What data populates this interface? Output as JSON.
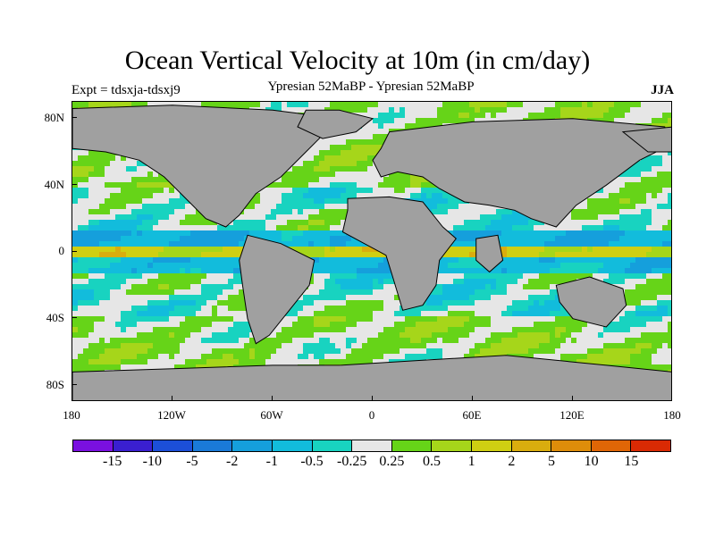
{
  "title": "Ocean Vertical Velocity at 10m (in cm/day)",
  "subtitle": "Ypresian  52MaBP - Ypresian  52MaBP",
  "expt": "Expt = tdsxja-tdsxj9",
  "season": "JJA",
  "lat_labels": [
    "80N",
    "40N",
    "0",
    "40S",
    "80S"
  ],
  "lon_labels": [
    "180",
    "120W",
    "60W",
    "0",
    "60E",
    "120E",
    "180"
  ],
  "colorbar": {
    "colors": [
      "#7a10e0",
      "#3a1fd0",
      "#1c4fd8",
      "#1a7ad8",
      "#159fdc",
      "#12bcdc",
      "#18d3c0",
      "#e6e6e6",
      "#66d418",
      "#a6d61a",
      "#cfcf12",
      "#d9ad0e",
      "#de8d0a",
      "#e06606",
      "#d92a04"
    ],
    "labels": [
      "-15",
      "-10",
      "-5",
      "-2",
      "-1",
      "-0.5",
      "-0.25",
      "0.25",
      "0.5",
      "1",
      "2",
      "5",
      "10",
      "15"
    ]
  },
  "colors": {
    "land": "#a0a0a0",
    "coast": "#000000"
  }
}
